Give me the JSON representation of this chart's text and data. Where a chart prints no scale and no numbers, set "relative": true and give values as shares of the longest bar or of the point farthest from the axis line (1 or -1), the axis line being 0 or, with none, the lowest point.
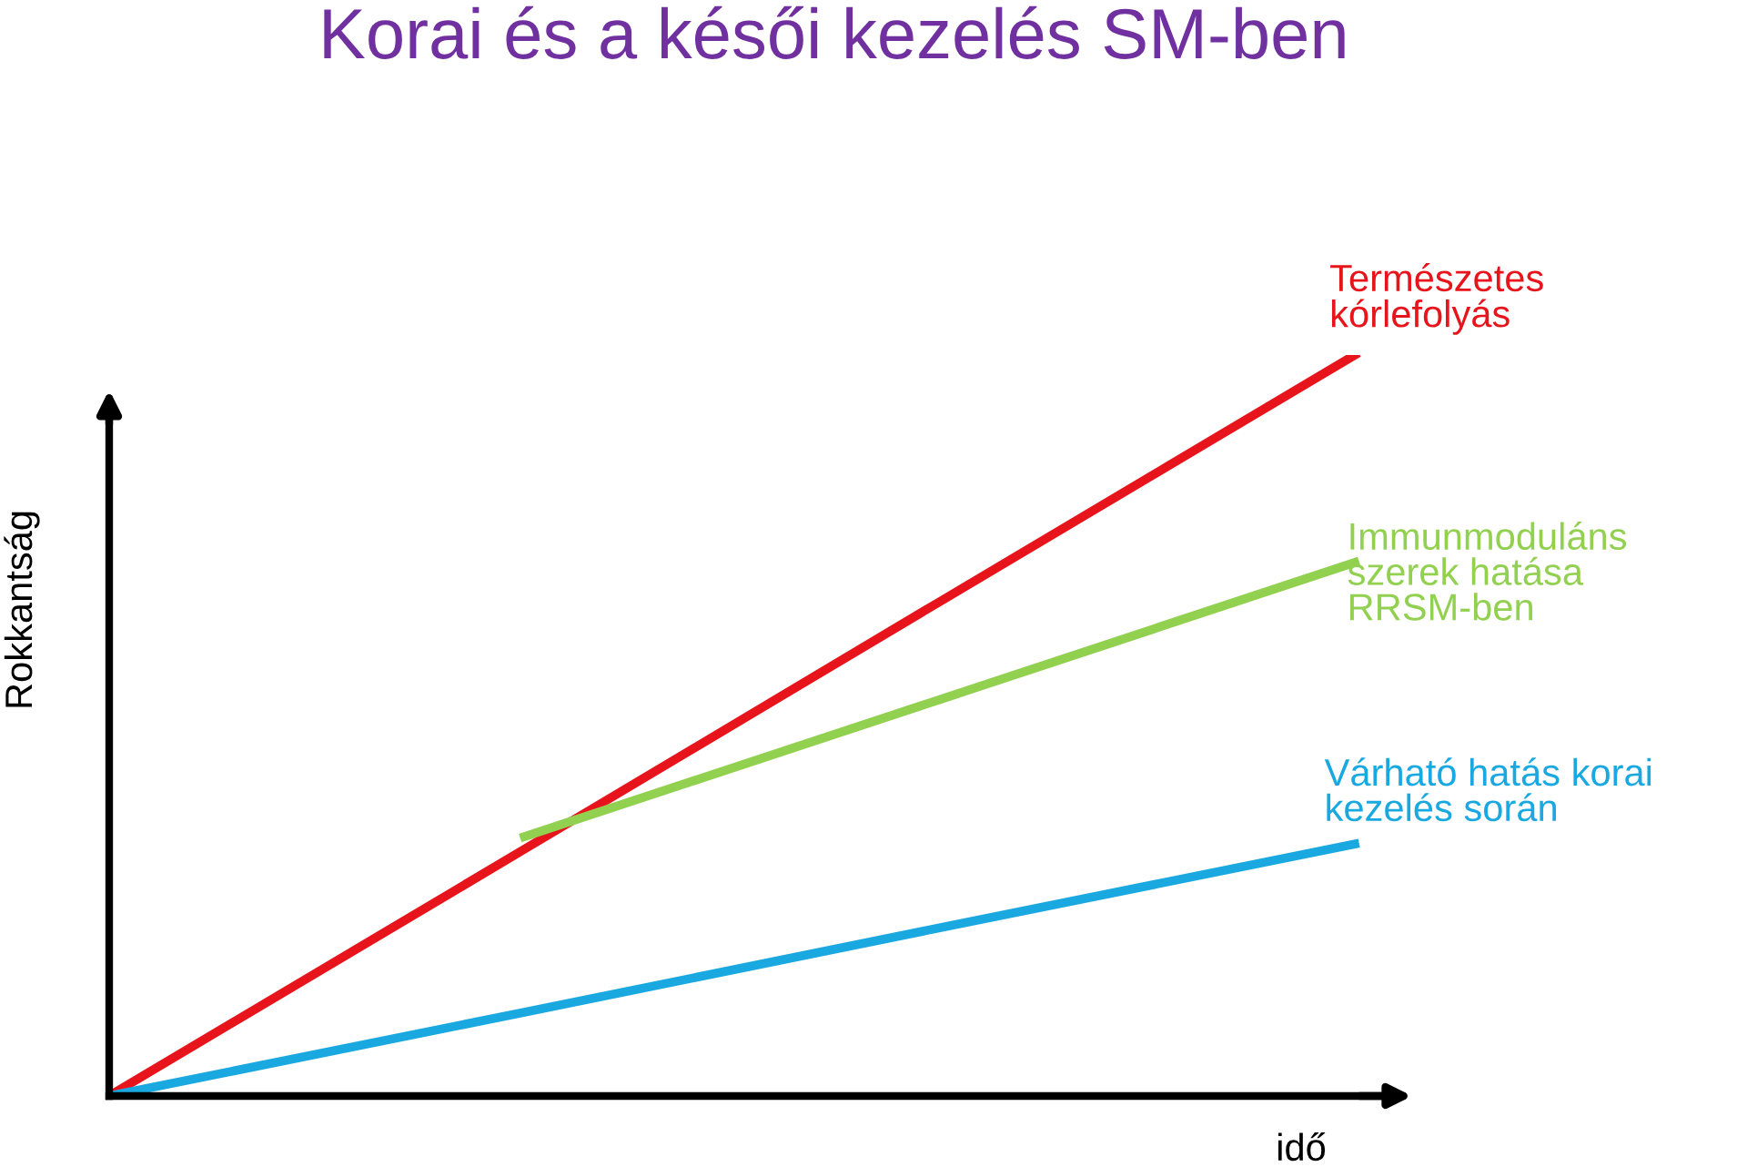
{
  "chart_data": {
    "type": "line",
    "title": "Korai és a késői kezelés SM-ben",
    "xlabel": "idő",
    "ylabel": "Rokkantság",
    "relative": true,
    "categories": [
      null,
      null,
      null,
      null
    ],
    "series": [
      {
        "name": "Természetes\nkórlefolyás",
        "color": "#e8141b",
        "values": [
          0,
          0.333,
          0.667,
          1
        ]
      },
      {
        "name": "Immunmoduláns\nszerek hatása\nRRSM-ben",
        "color": "#92d050",
        "values": [
          null,
          0.35,
          0.535,
          0.72
        ]
      },
      {
        "name": "Várható hatás korai\nkezelés során",
        "color": "#1aa8e0",
        "values": [
          0,
          0.113,
          0.227,
          0.34
        ]
      }
    ],
    "legend": false,
    "grid": false,
    "marker": "none",
    "line_style": "solid"
  }
}
